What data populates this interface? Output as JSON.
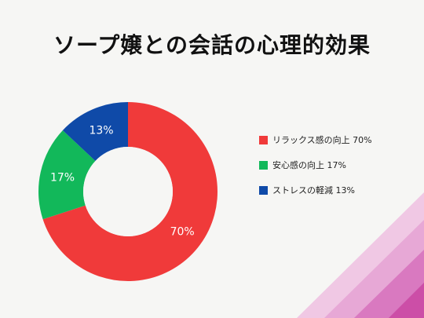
{
  "title": "ソープ嬢との会話の心理的効果",
  "chart_data": {
    "type": "pie",
    "title": "ソープ嬢との会話の心理的効果",
    "slices": [
      {
        "label": "リラックス感の向上",
        "value": 70,
        "display": "70%",
        "legend": "リラックス感の向上 70%",
        "color": "#f03a3a"
      },
      {
        "label": "安心感の向上",
        "value": 17,
        "display": "17%",
        "legend": "安心感の向上 17%",
        "color": "#12b85a"
      },
      {
        "label": "ストレスの軽減",
        "value": 13,
        "display": "13%",
        "legend": "ストレスの軽減 13%",
        "color": "#0f4aa8"
      }
    ],
    "legend_position": "right"
  },
  "decor": {
    "corner_colors": [
      "#f0c8e4",
      "#e7a8d6",
      "#d979c0",
      "#cc4ea7"
    ]
  }
}
